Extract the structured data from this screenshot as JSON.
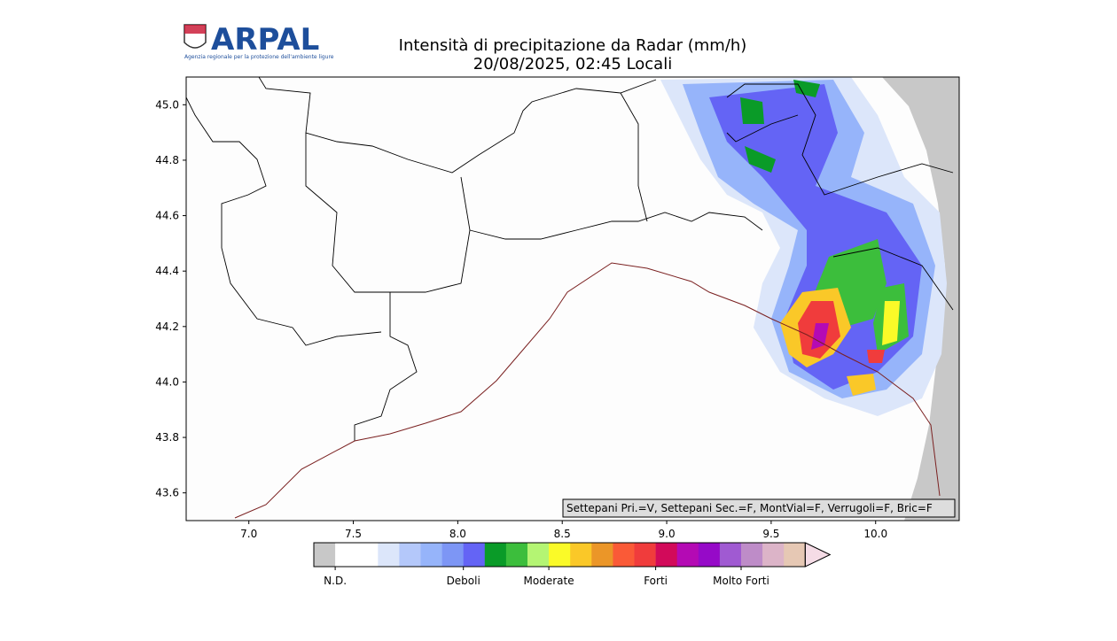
{
  "header": {
    "logo": "ARPAL",
    "logo_subtitle": "Agenzia regionale per la protezione dell'ambiente ligure",
    "title": "Intensità di precipitazione da Radar (mm/h)",
    "subtitle": "20/08/2025, 02:45 Locali"
  },
  "map": {
    "xlim": [
      6.7,
      10.4
    ],
    "ylim": [
      43.5,
      45.1
    ],
    "xticks": [
      {
        "value": 7,
        "label": "7.0"
      },
      7.5,
      {
        "value": 8,
        "label": "8.0"
      },
      8.5,
      {
        "value": 9,
        "label": "9.0"
      },
      9.5,
      {
        "value": 10,
        "label": "10.0"
      }
    ],
    "yticks": [
      {
        "value": 43.6,
        "label": "43.6"
      },
      43.8,
      {
        "value": 44,
        "label": "44.0"
      },
      44.2,
      44.4,
      44.6,
      44.8,
      {
        "value": 45,
        "label": "45.0"
      }
    ],
    "annotation": "Settepani Pri.=V, Settepani Sec.=F, MontVial=F, Verrugoli=F, Bric=F"
  },
  "colorbar": {
    "colors": [
      "#c8c8c8",
      "#ffffff",
      "#ffffff",
      "#dce6fa",
      "#b4c8fa",
      "#96b4fa",
      "#7d96f5",
      "#6464f5",
      "#0a9b28",
      "#3cbe3c",
      "#b4f573",
      "#fafa28",
      "#fac828",
      "#eb9628",
      "#fa5a37",
      "#f03c3c",
      "#d20a5a",
      "#b40ab4",
      "#960ac8",
      "#a05ad2",
      "#be8cc8",
      "#dcb4c8",
      "#e6c8b4"
    ],
    "extend_color": "#f5dce6",
    "ticks": [
      {
        "value": 1,
        "label": "N.D."
      },
      {
        "value": 7,
        "label": "Deboli"
      },
      {
        "value": 11,
        "label": "Moderate"
      },
      {
        "value": 16,
        "label": "Forti"
      },
      {
        "value": 20,
        "label": "Molto Forti"
      }
    ]
  }
}
